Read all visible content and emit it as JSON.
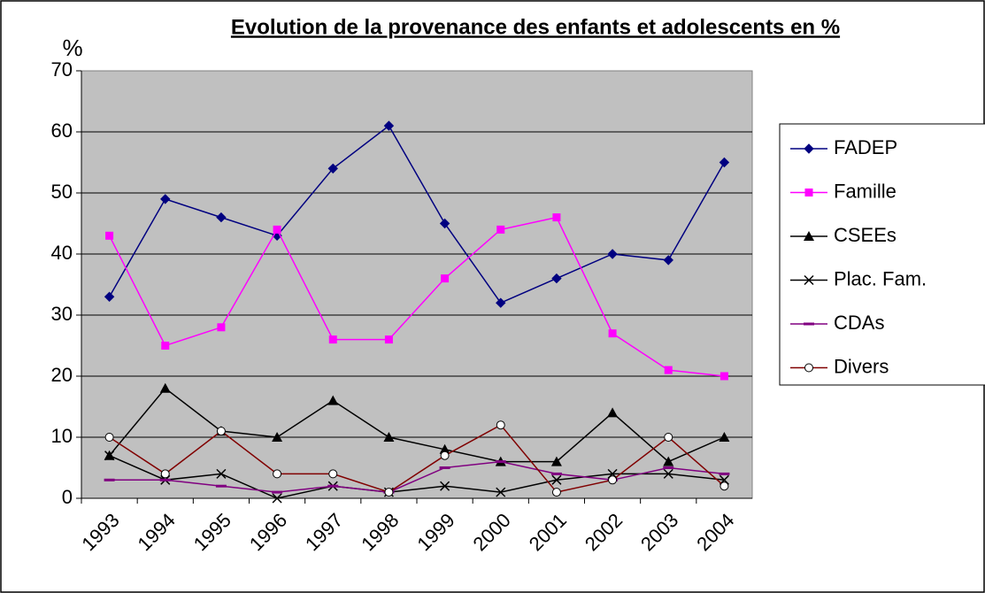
{
  "chart_data": {
    "type": "line",
    "title": "Evolution de la provenance des enfants et adolescents en %",
    "y_label": "%",
    "categories": [
      "1993",
      "1994",
      "1995",
      "1996",
      "1997",
      "1998",
      "1999",
      "2000",
      "2001",
      "2002",
      "2003",
      "2004"
    ],
    "series": [
      {
        "name": "FADEP",
        "color": "#000080",
        "marker": "diamond",
        "values": [
          33,
          49,
          46,
          43,
          54,
          61,
          45,
          32,
          36,
          40,
          39,
          55
        ]
      },
      {
        "name": "Famille",
        "color": "#ff00ff",
        "marker": "square",
        "values": [
          43,
          25,
          28,
          44,
          26,
          26,
          36,
          44,
          46,
          27,
          21,
          20
        ]
      },
      {
        "name": "CSEEs",
        "color": "#000000",
        "marker": "triangle",
        "values": [
          7,
          18,
          11,
          10,
          16,
          10,
          8,
          6,
          6,
          14,
          6,
          10
        ]
      },
      {
        "name": "Plac. Fam.",
        "color": "#000000",
        "marker": "x",
        "values": [
          7,
          3,
          4,
          0,
          2,
          1,
          2,
          1,
          3,
          4,
          4,
          3
        ]
      },
      {
        "name": "CDAs",
        "color": "#800080",
        "marker": "dash",
        "values": [
          3,
          3,
          2,
          1,
          2,
          1,
          5,
          6,
          4,
          3,
          5,
          4
        ]
      },
      {
        "name": "Divers",
        "color": "#800000",
        "marker": "circle",
        "values": [
          10,
          4,
          11,
          4,
          4,
          1,
          7,
          12,
          1,
          3,
          10,
          2
        ]
      }
    ],
    "ylim": [
      0,
      70
    ],
    "yticks": [
      0,
      10,
      20,
      30,
      40,
      50,
      60,
      70
    ],
    "grid": true,
    "legend": "right"
  }
}
